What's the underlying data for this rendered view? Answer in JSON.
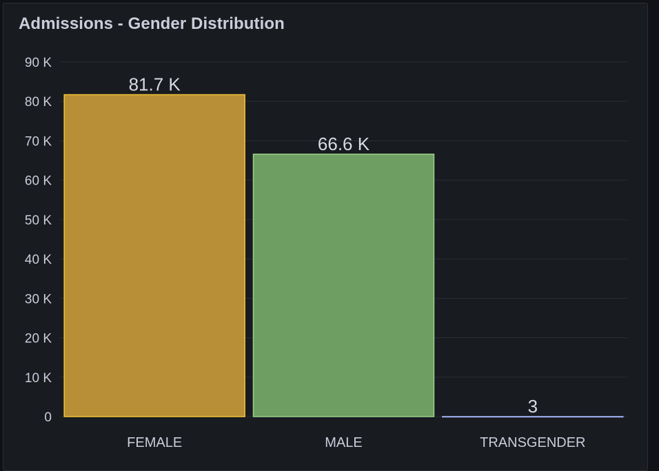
{
  "panel": {
    "title": "Admissions - Gender Distribution"
  },
  "chart_data": {
    "type": "bar",
    "title": "Admissions - Gender Distribution",
    "categories": [
      "FEMALE",
      "MALE",
      "TRANSGENDER"
    ],
    "values": [
      81700,
      66600,
      3
    ],
    "value_labels": [
      "81.7 K",
      "66.6 K",
      "3"
    ],
    "ylim": [
      0,
      90000
    ],
    "yticks": [
      {
        "value": 0,
        "label": "0"
      },
      {
        "value": 10000,
        "label": "10 K"
      },
      {
        "value": 20000,
        "label": "20 K"
      },
      {
        "value": 30000,
        "label": "30 K"
      },
      {
        "value": 40000,
        "label": "40 K"
      },
      {
        "value": 50000,
        "label": "50 K"
      },
      {
        "value": 60000,
        "label": "60 K"
      },
      {
        "value": 70000,
        "label": "70 K"
      },
      {
        "value": 80000,
        "label": "80 K"
      },
      {
        "value": 90000,
        "label": "90 K"
      }
    ],
    "grid": true,
    "colors": {
      "bar_fills": [
        "#b88f37",
        "#6f9e62",
        "#8a9bd6"
      ],
      "bar_strokes": [
        "#f2c436",
        "#9ad28a",
        "#a8b6ff"
      ],
      "grid": "#2a2d33",
      "background": "#181b1f"
    }
  }
}
